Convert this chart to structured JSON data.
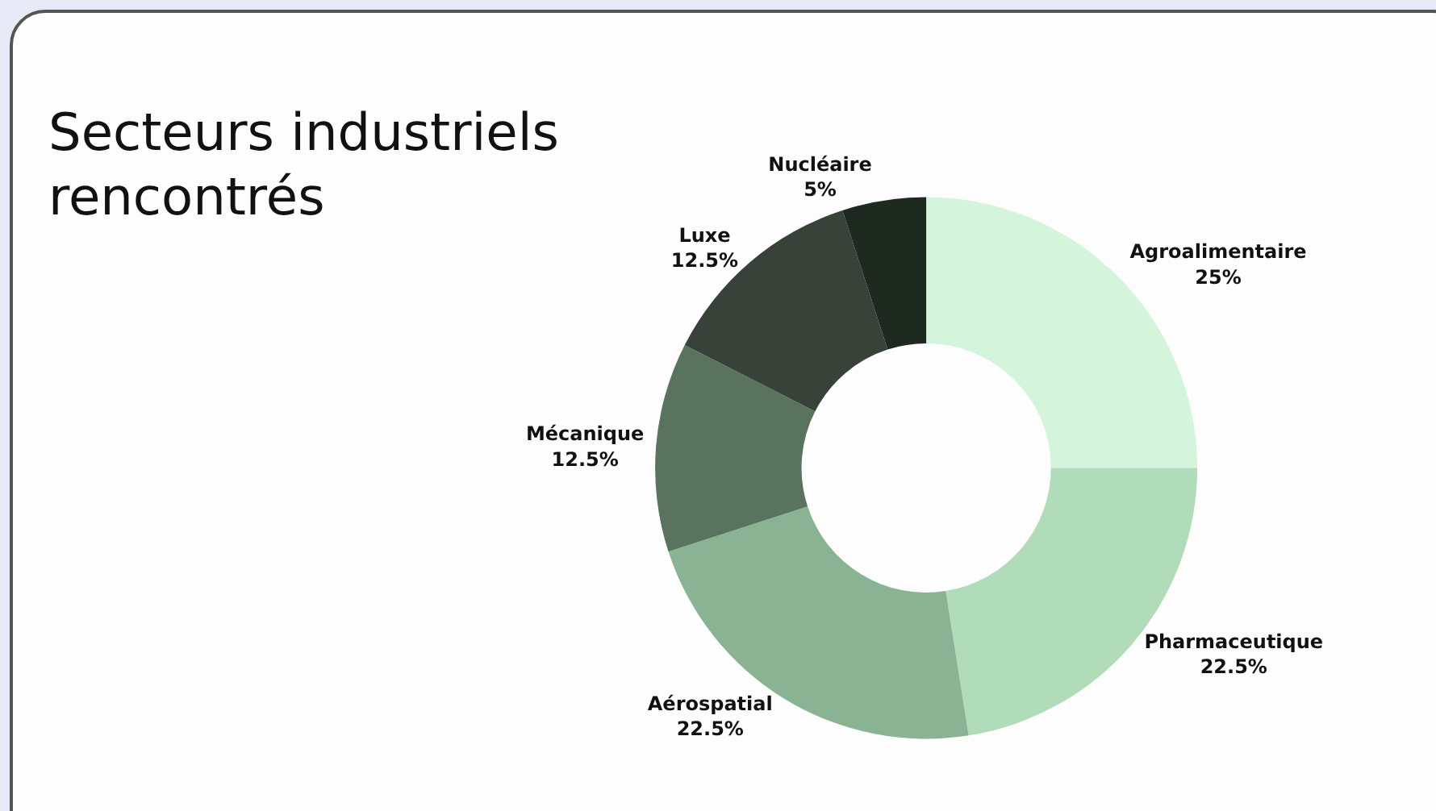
{
  "chart_data": {
    "type": "donut",
    "title": "Secteurs industriels rencontrés",
    "categories": [
      "Agroalimentaire",
      "Pharmaceutique",
      "Aérospatial",
      "Mécanique",
      "Luxe",
      "Nucléaire"
    ],
    "values": [
      25,
      22.5,
      22.5,
      12.5,
      12.5,
      5
    ],
    "value_labels": [
      "25%",
      "22.5%",
      "22.5%",
      "12.5%",
      "12.5%",
      "5%"
    ],
    "colors": [
      "#d4f5dc",
      "#b0dcb9",
      "#8ab393",
      "#5a735f",
      "#384238",
      "#1e2a20"
    ],
    "legend": false
  }
}
